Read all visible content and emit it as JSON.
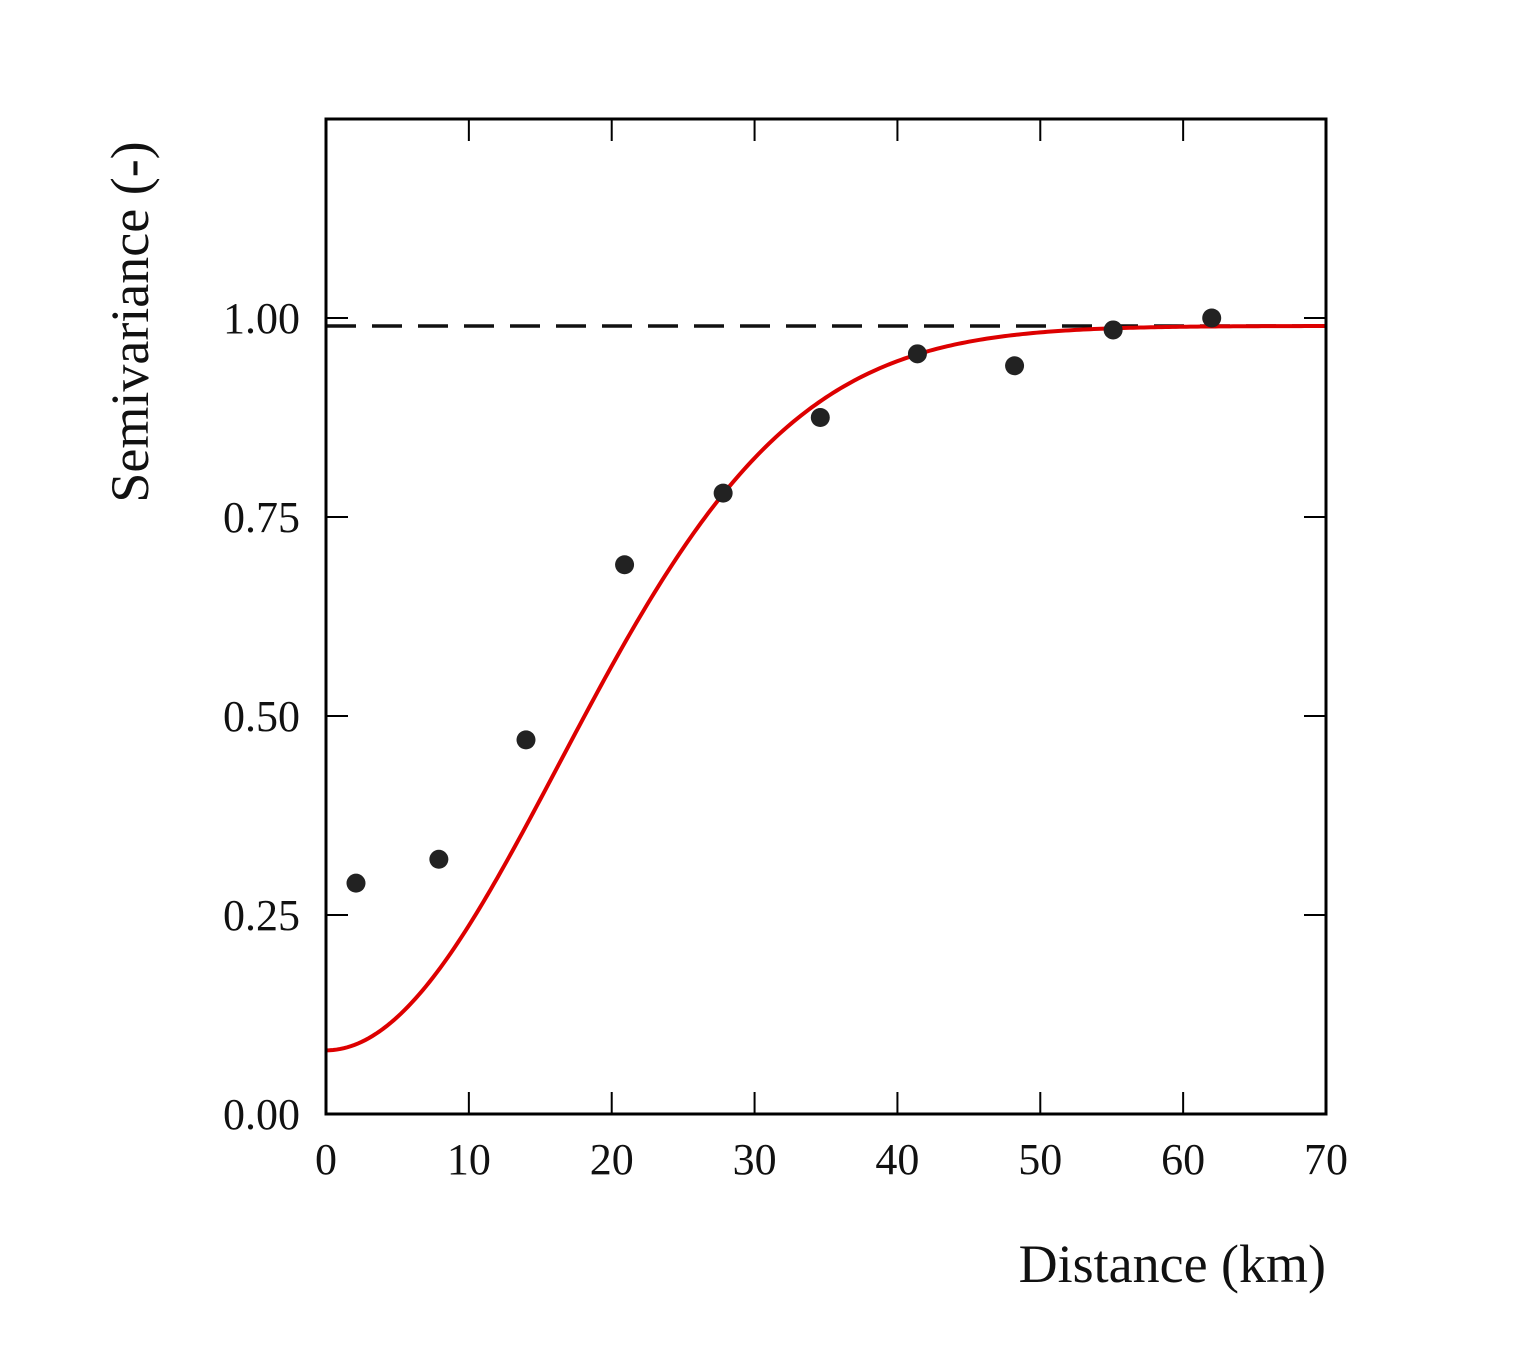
{
  "chart_data": {
    "type": "scatter",
    "title": "",
    "xlabel": "Distance (km)",
    "ylabel": "Semivariance (-)",
    "xlim": [
      0,
      70
    ],
    "ylim": [
      0,
      1.25
    ],
    "x_ticks": [
      0,
      10,
      20,
      30,
      40,
      50,
      60,
      70
    ],
    "x_tick_labels": [
      "0",
      "10",
      "20",
      "30",
      "40",
      "50",
      "60",
      "70"
    ],
    "y_ticks": [
      0,
      0.25,
      0.5,
      0.75,
      1.0
    ],
    "y_tick_labels": [
      "0.00",
      "0.25",
      "0.50",
      "0.75",
      "1.00"
    ],
    "grid": false,
    "legend": null,
    "series": [
      {
        "name": "empirical semivariance",
        "kind": "scatter",
        "color": "#222222",
        "x": [
          2.1,
          7.9,
          14.0,
          20.9,
          27.8,
          34.6,
          41.4,
          48.2,
          55.1,
          62.0
        ],
        "y": [
          0.29,
          0.32,
          0.47,
          0.69,
          0.78,
          0.875,
          0.955,
          0.94,
          0.985,
          1.0
        ]
      },
      {
        "name": "fitted model",
        "kind": "line",
        "color": "#dd0000",
        "model": "gaussian",
        "nugget": 0.08,
        "sill": 0.99,
        "range_km": 23
      },
      {
        "name": "sill",
        "kind": "hline",
        "color": "#111111",
        "style": "dashed",
        "y": 0.99
      }
    ]
  }
}
